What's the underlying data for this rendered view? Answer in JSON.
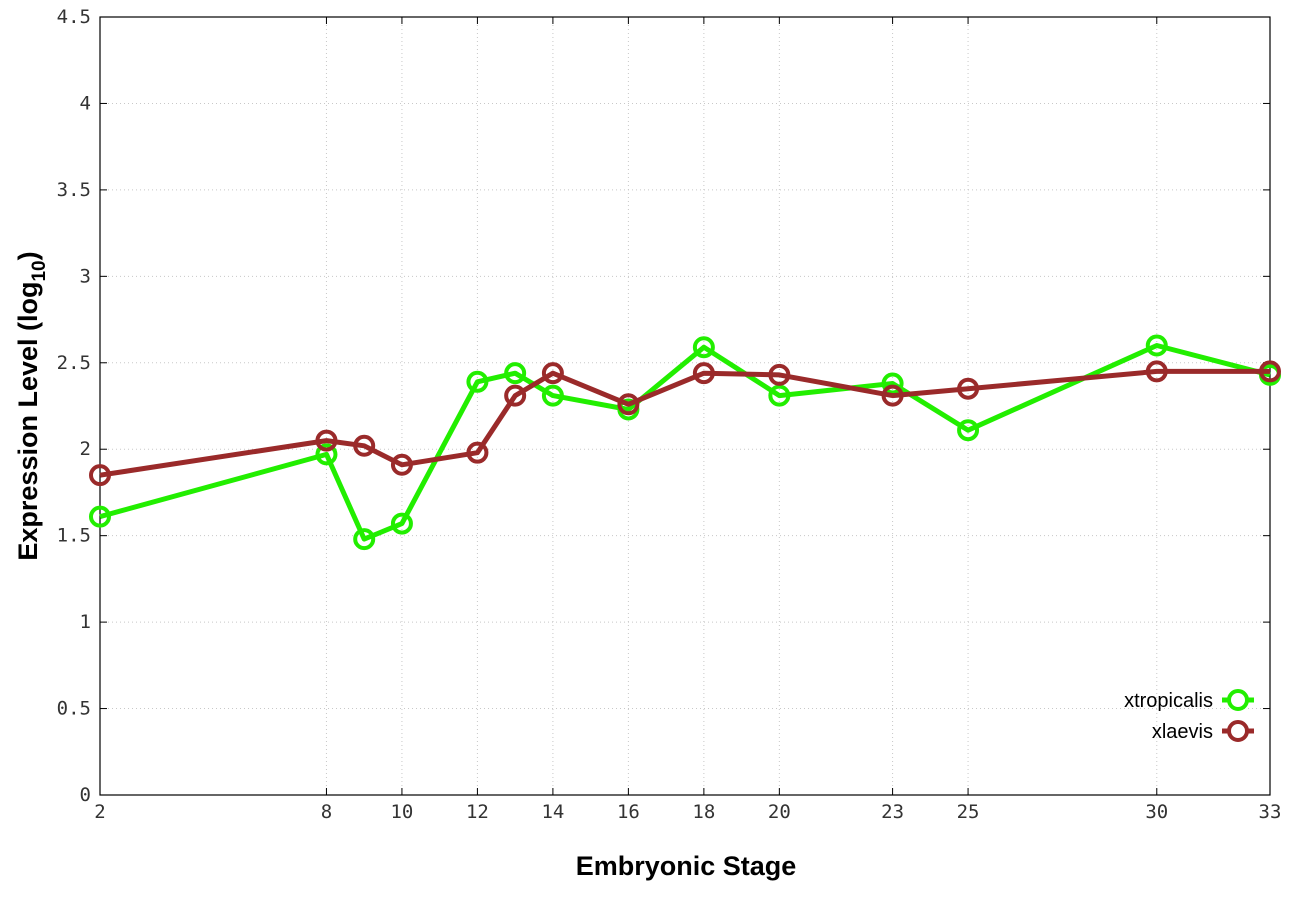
{
  "chart_data": {
    "type": "line",
    "xlabel": "Embryonic Stage",
    "ylabel_main": "Expression Level (log",
    "ylabel_sub": "10",
    "ylabel_close": ")",
    "x_categories": [
      "2",
      "8",
      "10",
      "12",
      "14",
      "16",
      "18",
      "20",
      "23",
      "25",
      "30",
      "33"
    ],
    "x_tick_values": [
      2,
      8,
      10,
      12,
      14,
      16,
      18,
      20,
      23,
      25,
      30,
      33
    ],
    "xlim": [
      2,
      33
    ],
    "ylim": [
      0,
      4.5
    ],
    "y_ticks": [
      "0",
      "0.5",
      "1",
      "1.5",
      "2",
      "2.5",
      "3",
      "3.5",
      "4",
      "4.5"
    ],
    "y_tick_values": [
      0,
      0.5,
      1,
      1.5,
      2,
      2.5,
      3,
      3.5,
      4,
      4.5
    ],
    "grid": true,
    "legend_position": "bottom-right",
    "series": [
      {
        "name": "xtropicalis",
        "color": "#22ee00",
        "x": [
          2,
          8,
          9,
          10,
          12,
          13,
          14,
          16,
          18,
          20,
          23,
          25,
          30,
          33
        ],
        "y": [
          1.61,
          1.97,
          1.48,
          1.57,
          2.39,
          2.44,
          2.31,
          2.23,
          2.59,
          2.31,
          2.38,
          2.11,
          2.6,
          2.43
        ]
      },
      {
        "name": "xlaevis",
        "color": "#9a2a2a",
        "x": [
          2,
          8,
          9,
          10,
          12,
          13,
          14,
          16,
          18,
          20,
          23,
          25,
          30,
          33
        ],
        "y": [
          1.85,
          2.05,
          2.02,
          1.91,
          1.98,
          2.31,
          2.44,
          2.26,
          2.44,
          2.43,
          2.31,
          2.35,
          2.45,
          2.45
        ]
      }
    ]
  }
}
